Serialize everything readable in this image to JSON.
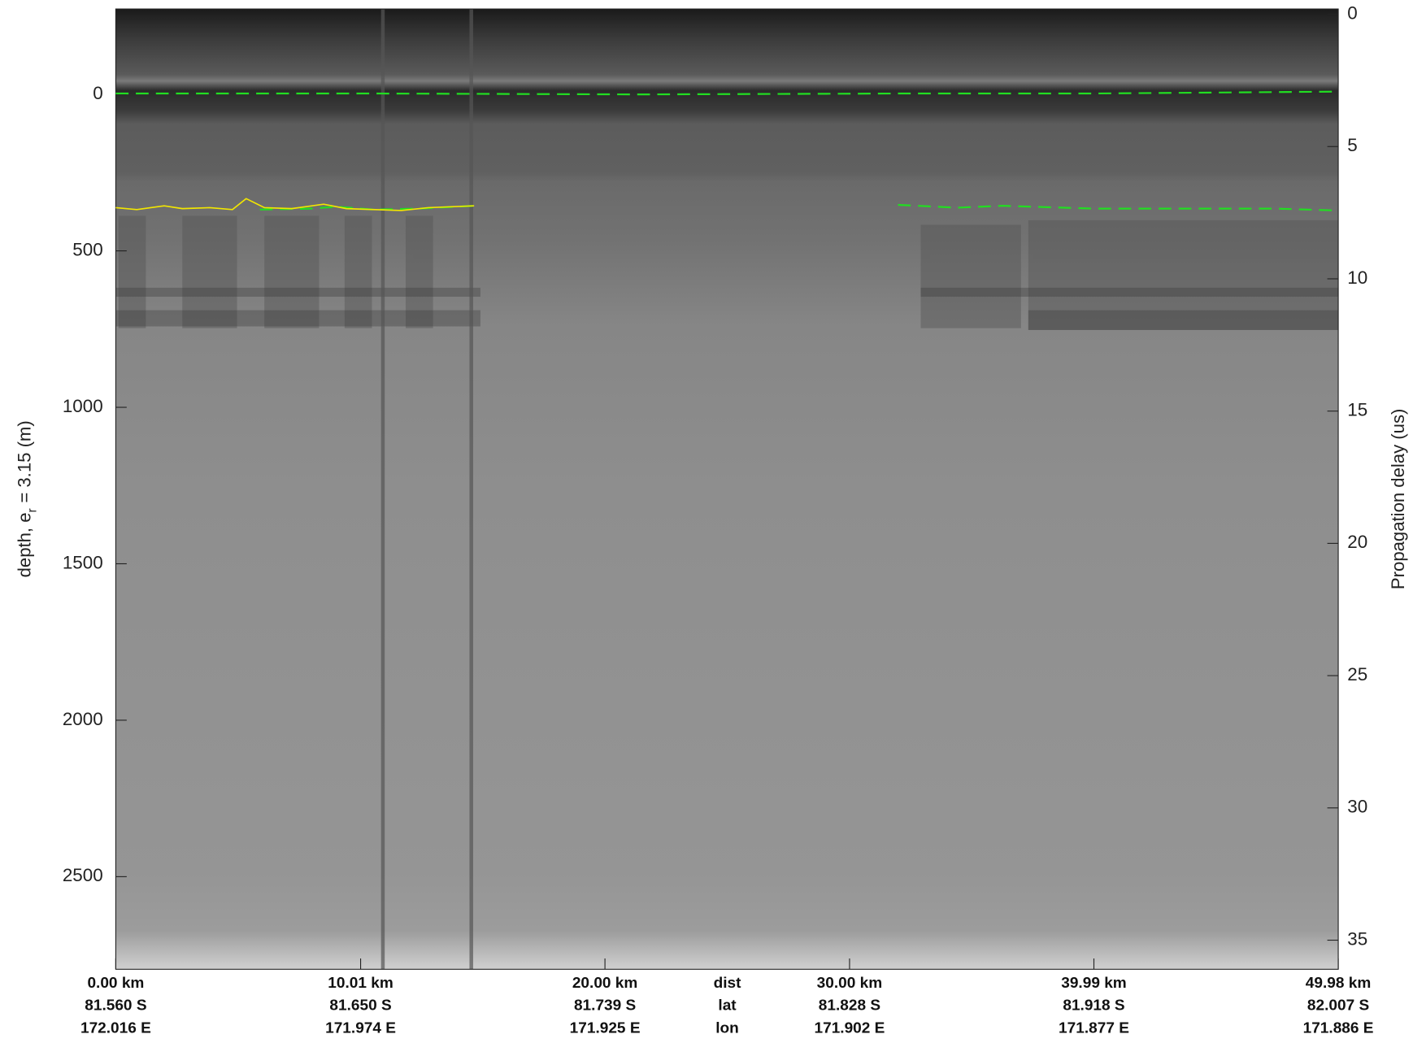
{
  "chart_data": {
    "type": "echogram",
    "ylabel": [
      "depth, e",
      "r",
      "= 3.15 (m)"
    ],
    "y2label": "Propagation delay (us)",
    "xlim": [
      0,
      49.98
    ],
    "ylim": [
      -273,
      2796
    ],
    "y2lim": [
      -0.2,
      36.1
    ],
    "yticks": [
      0,
      500,
      1000,
      1500,
      2000,
      2500
    ],
    "y2ticks": [
      0,
      5,
      10,
      15,
      20,
      25,
      30,
      35
    ],
    "xticks": [
      {
        "value": 0,
        "label": "0.00 km"
      },
      {
        "value": 10.01,
        "label": "10.01 km"
      },
      {
        "value": 20.0,
        "label": "20.00 km"
      },
      {
        "value": 30.0,
        "label": "30.00 km"
      },
      {
        "value": 39.99,
        "label": "39.99 km"
      },
      {
        "value": 49.98,
        "label": "49.98 km"
      }
    ],
    "lat_labels": [
      "81.560 S",
      "81.650 S",
      "81.739 S",
      "81.828 S",
      "81.918 S",
      "82.007 S"
    ],
    "lon_labels": [
      "172.016 E",
      "171.974 E",
      "171.925 E",
      "171.902 E",
      "171.877 E",
      "171.886 E"
    ],
    "row_labels": [
      "dist",
      "lat",
      "lon"
    ],
    "layers": [
      {
        "color": "#22dd22",
        "dashed": true,
        "x": [
          0,
          10.18,
          21.36,
          32.54,
          39.99,
          49.98
        ],
        "values": [
          -3,
          -3,
          0,
          -3,
          -3,
          -9
        ]
      },
      {
        "color": "#22dd22",
        "dashed": true,
        "x": [
          5.89,
          7.94,
          9.06,
          10.55,
          12.41,
          14.65,
          null,
          31.98,
          34.4,
          36.26,
          39.99,
          43.72,
          47.44,
          49.98
        ],
        "values": [
          368,
          365,
          359,
          368,
          365,
          356,
          null,
          353,
          362,
          356,
          365,
          365,
          365,
          371
        ]
      },
      {
        "color": "#f2e600",
        "dashed": false,
        "x": [
          0,
          0.86,
          1.98,
          2.72,
          3.84,
          4.77,
          5.33,
          6.08,
          7.19,
          8.5,
          9.43,
          11.67,
          12.78,
          14.65
        ],
        "values": [
          362,
          368,
          356,
          365,
          362,
          368,
          333,
          362,
          365,
          351,
          365,
          371,
          362,
          356
        ]
      }
    ]
  }
}
